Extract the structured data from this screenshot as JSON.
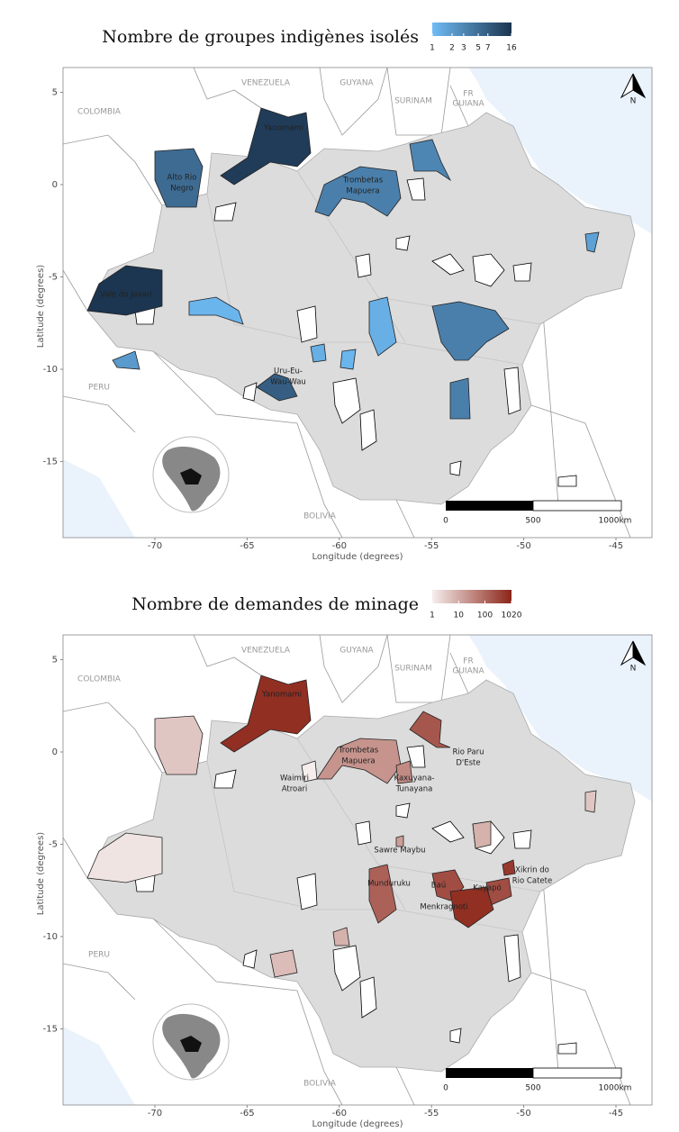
{
  "common": {
    "xticks": [
      -70,
      -65,
      -60,
      -55,
      -50,
      -45
    ],
    "yticks": [
      5,
      0,
      -5,
      -10,
      -15
    ],
    "xlabel": "Longitude (degrees)",
    "ylabel": "Latitude (degrees)",
    "countries": [
      [
        "VENEZUELA"
      ],
      [
        "GUYANA"
      ],
      [
        "SURINAM"
      ],
      [
        "FR",
        "GUIANA"
      ],
      [
        "COLOMBIA"
      ],
      [
        "PERU"
      ],
      [
        "BOLIVIA"
      ]
    ],
    "scale": [
      0,
      500,
      "1000km"
    ],
    "north": "N"
  },
  "maps": [
    {
      "title": "Nombre de groupes indigènes isolés",
      "legend": {
        "ticks": [
          1,
          2,
          3,
          5,
          7,
          16
        ],
        "colors": [
          "#6fbcf5",
          "#1c3550"
        ]
      },
      "territories": [
        [
          "Yanomami"
        ],
        [
          "Alto Rio",
          "Negro"
        ],
        [
          "Trombetas",
          "Mapuera"
        ],
        [
          "Vale do Javari"
        ],
        [
          "Uru-Eu-",
          "Wau-Wau"
        ]
      ]
    },
    {
      "title": "Nombre de demandes de minage",
      "legend": {
        "ticks": [
          1,
          10,
          100,
          1020
        ],
        "colors": [
          "#f5eeed",
          "#8c2518"
        ]
      },
      "territories": [
        [
          "Yanomami"
        ],
        [
          "Trombetas",
          "Mapuera"
        ],
        [
          "Waimiri",
          "Atroari"
        ],
        [
          "Kaxuyana-",
          "Tunayana"
        ],
        [
          "Rio Paru",
          "D'Este"
        ],
        [
          "Sawre Maybu"
        ],
        [
          "Munduruku"
        ],
        [
          "Baú"
        ],
        [
          "Kayapó"
        ],
        [
          "Menkragnoti"
        ],
        [
          "Xikrin do",
          "Rio Catete"
        ]
      ]
    }
  ]
}
